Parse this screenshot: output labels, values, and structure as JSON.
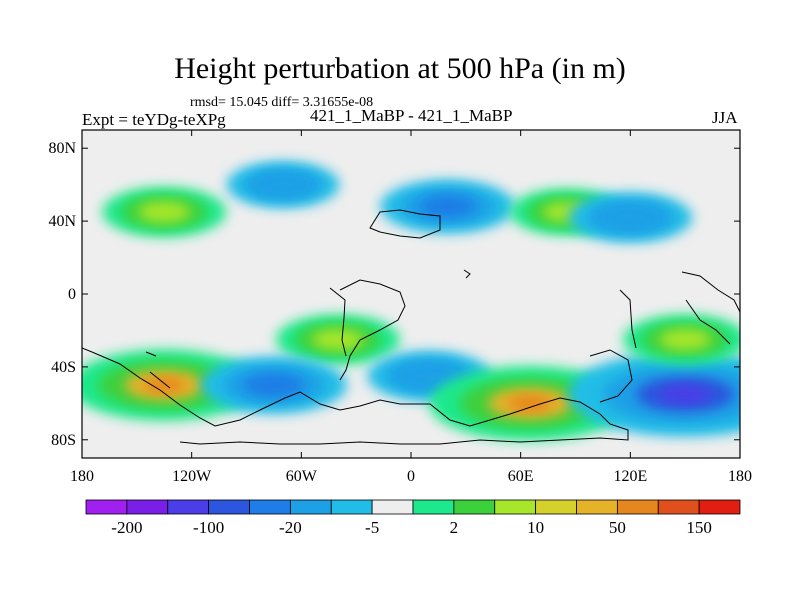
{
  "chart_data": {
    "type": "heatmap",
    "title": "Height perturbation at 500 hPa (in m)",
    "stats": "rmsd= 15.045 diff= 3.31655e-08",
    "left_label": "Expt = teYDg-teXPg",
    "center_label": "421_1_MaBP - 421_1_MaBP",
    "right_label": "JJA",
    "x_ticks": [
      "180",
      "120W",
      "60W",
      "0",
      "60E",
      "120E",
      "180"
    ],
    "y_ticks": [
      "80N",
      "40N",
      "0",
      "40S",
      "80S"
    ],
    "xlim": [
      -180,
      180
    ],
    "ylim": [
      -90,
      90
    ],
    "colorbar": {
      "labels": [
        "-200",
        "-100",
        "-20",
        "-5",
        "2",
        "10",
        "50",
        "150"
      ],
      "colors": [
        "#a020f0",
        "#7a1fe6",
        "#4b3ee8",
        "#2b56dd",
        "#1e7de6",
        "#1ea0e6",
        "#22bde6",
        "#eeeeee",
        "#1ee88c",
        "#3cd03c",
        "#a8e62c",
        "#d4d02c",
        "#e6b22a",
        "#e6861e",
        "#e0501c",
        "#e01e12"
      ]
    },
    "features": [
      {
        "type": "positive",
        "value": 20,
        "lon": -135,
        "lat": 45
      },
      {
        "type": "negative",
        "value": -25,
        "lon": 20,
        "lat": 48
      },
      {
        "type": "negative",
        "value": -15,
        "lon": -70,
        "lat": 60
      },
      {
        "type": "positive",
        "value": 15,
        "lon": 85,
        "lat": 45
      },
      {
        "type": "negative",
        "value": -20,
        "lon": 120,
        "lat": 42
      },
      {
        "type": "positive",
        "value": 20,
        "lon": -40,
        "lat": -25
      },
      {
        "type": "positive",
        "value": 50,
        "lon": -135,
        "lat": -50
      },
      {
        "type": "negative",
        "value": -30,
        "lon": -75,
        "lat": -50
      },
      {
        "type": "negative",
        "value": -20,
        "lon": 10,
        "lat": -45
      },
      {
        "type": "positive",
        "value": 55,
        "lon": 65,
        "lat": -60
      },
      {
        "type": "negative",
        "value": -70,
        "lon": 150,
        "lat": -55
      },
      {
        "type": "positive",
        "value": 20,
        "lon": 150,
        "lat": -25
      }
    ]
  }
}
